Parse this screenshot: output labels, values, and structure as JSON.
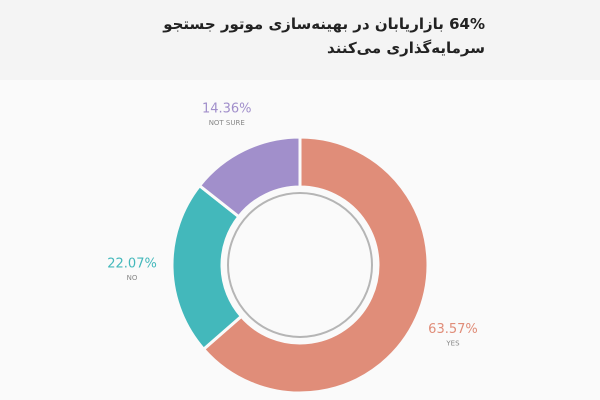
{
  "chart_data": {
    "type": "donut",
    "title": "64% بازاریابان در بهینه‌سازی موتور جستجو سرمایه‌گذاری می‌کنند",
    "categories": [
      "YES",
      "NO",
      "NOT SURE"
    ],
    "values": [
      63.57,
      22.07,
      14.36
    ],
    "value_labels": [
      "63.57%",
      "22.07%",
      "14.36%"
    ],
    "colors": [
      "#e08d79",
      "#43b8bb",
      "#a18fcb"
    ]
  }
}
